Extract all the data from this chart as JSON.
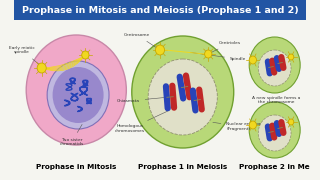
{
  "title": "Prophase in Mitosis and Meiosis (Prophase 1 and 2)",
  "title_bg": "#2255a4",
  "title_color": "white",
  "bg_color": "#f5f5f0",
  "cell1_label": "Prophase in Mitosis",
  "cell2_label": "Prophase 1 in Meiosis",
  "cell3_label": "Prophase 2 in Me",
  "cell1_outer_color": "#f0a8c8",
  "cell1_inner_color": "#9888cc",
  "cell1_inner_light": "#c0b8e0",
  "cell2_outer_color": "#b8d878",
  "cell2_inner_color": "#d8d8c0",
  "cell3_outer_color": "#b8d878",
  "cell3_inner_color": "#d8d8c0",
  "spindle_color": "#f0d820",
  "spindle_edge": "#c8a800",
  "chromosome_blue": "#2844b8",
  "chromosome_red": "#c02828",
  "label_fontsize": 5.2,
  "ann_fontsize": 3.2,
  "title_fontsize": 6.8
}
